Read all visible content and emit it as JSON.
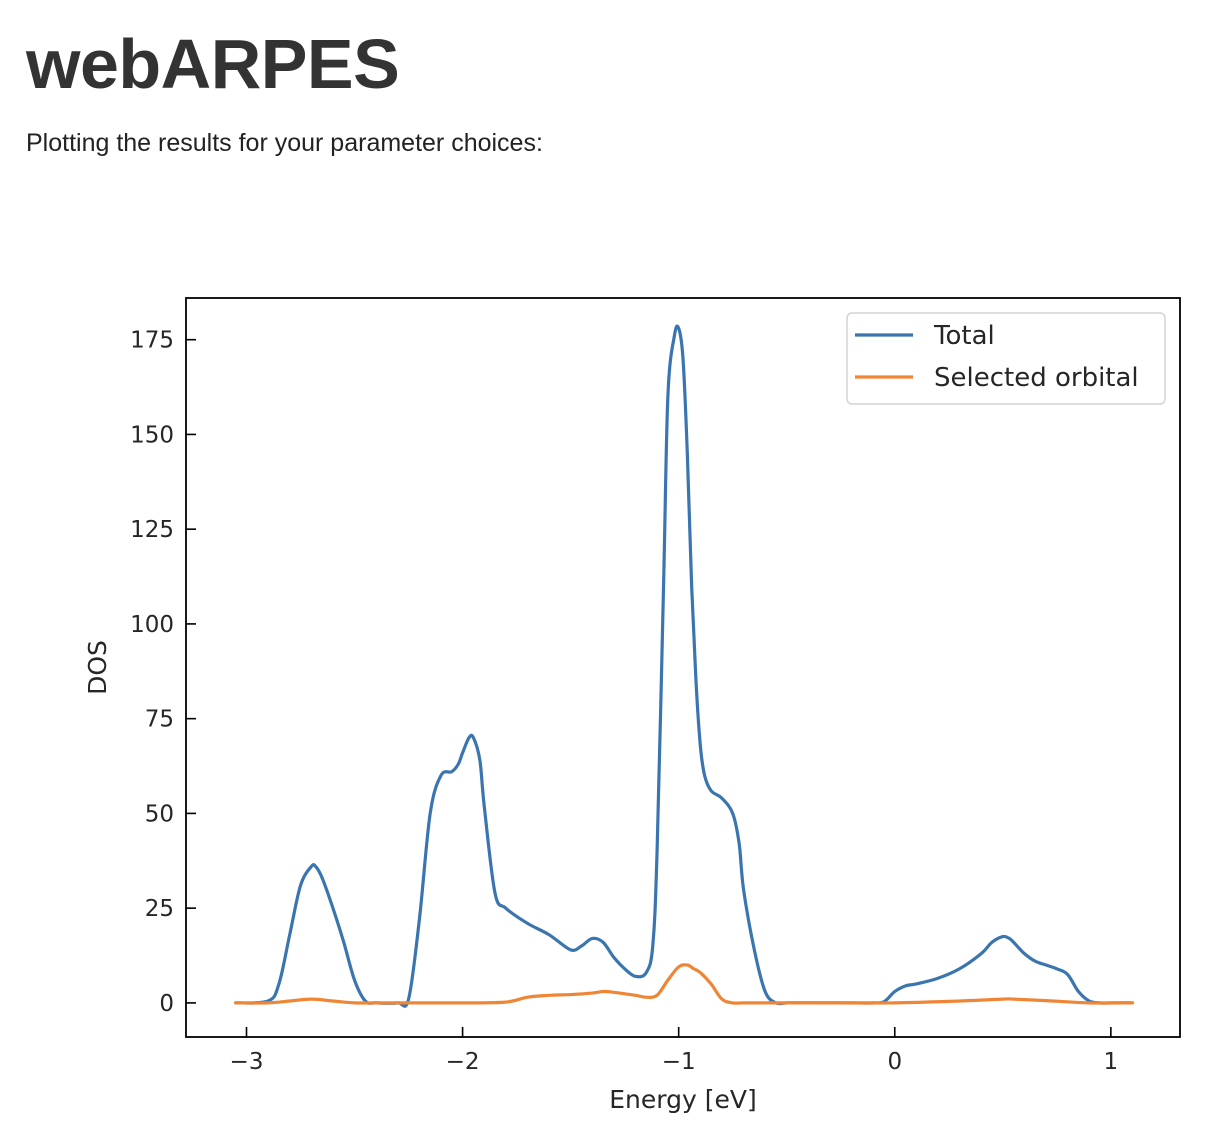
{
  "page": {
    "title": "webARPES",
    "intro": "Plotting the results for your parameter choices:"
  },
  "colors": {
    "total": "#3b75af",
    "selected_orbital": "#ef8636",
    "text": "#333333"
  },
  "chart_data": {
    "type": "line",
    "title": "",
    "xlabel": "Energy [eV]",
    "ylabel": "DOS",
    "xlim": [
      -3.28,
      1.32
    ],
    "ylim": [
      -9,
      186
    ],
    "xticks": [
      -3,
      -2,
      -1,
      0,
      1
    ],
    "xtick_labels": [
      "−3",
      "−2",
      "−1",
      "0",
      "1"
    ],
    "yticks": [
      0,
      25,
      50,
      75,
      100,
      125,
      150,
      175
    ],
    "ytick_labels": [
      "0",
      "25",
      "50",
      "75",
      "100",
      "125",
      "150",
      "175"
    ],
    "grid": false,
    "ticks_direction": "in",
    "legend_position": "top-right",
    "series": [
      {
        "name": "Total",
        "color": "#3b75af",
        "x": [
          -3.05,
          -2.9,
          -2.85,
          -2.8,
          -2.75,
          -2.7,
          -2.68,
          -2.65,
          -2.6,
          -2.55,
          -2.5,
          -2.45,
          -2.4,
          -2.3,
          -2.25,
          -2.2,
          -2.15,
          -2.1,
          -2.05,
          -2.02,
          -2.0,
          -1.97,
          -1.95,
          -1.92,
          -1.9,
          -1.85,
          -1.8,
          -1.7,
          -1.6,
          -1.5,
          -1.45,
          -1.4,
          -1.35,
          -1.3,
          -1.25,
          -1.2,
          -1.15,
          -1.12,
          -1.1,
          -1.07,
          -1.05,
          -1.02,
          -1.0,
          -0.98,
          -0.96,
          -0.94,
          -0.92,
          -0.9,
          -0.88,
          -0.85,
          -0.8,
          -0.75,
          -0.72,
          -0.7,
          -0.65,
          -0.6,
          -0.55,
          -0.5,
          -0.45,
          -0.4,
          -0.3,
          -0.2,
          -0.1,
          -0.05,
          0.0,
          0.05,
          0.1,
          0.2,
          0.3,
          0.4,
          0.45,
          0.5,
          0.53,
          0.55,
          0.6,
          0.65,
          0.7,
          0.75,
          0.8,
          0.85,
          0.9,
          0.95,
          1.0,
          1.1
        ],
        "y": [
          0,
          0.5,
          5,
          18,
          31,
          36,
          36,
          33,
          25,
          16,
          6,
          0.5,
          0,
          0,
          1,
          22,
          50,
          60,
          61,
          63,
          66,
          70,
          70,
          64,
          52,
          29,
          25,
          21,
          18,
          14,
          15,
          17,
          16,
          12,
          9,
          7,
          8,
          15,
          40,
          110,
          160,
          176,
          178,
          170,
          145,
          110,
          85,
          68,
          60,
          56,
          54,
          50,
          42,
          30,
          14,
          3,
          0,
          0,
          0,
          0,
          0,
          0,
          0,
          0.3,
          3,
          4.5,
          5,
          6.5,
          9,
          13,
          16,
          17.5,
          17,
          16,
          13,
          11,
          10,
          9,
          7.5,
          3,
          0.5,
          0,
          0,
          0
        ]
      },
      {
        "name": "Selected orbital",
        "color": "#ef8636",
        "x": [
          -3.05,
          -2.9,
          -2.8,
          -2.7,
          -2.6,
          -2.5,
          -2.4,
          -2.2,
          -2.0,
          -1.8,
          -1.7,
          -1.6,
          -1.5,
          -1.4,
          -1.35,
          -1.3,
          -1.2,
          -1.15,
          -1.1,
          -1.05,
          -1.0,
          -0.96,
          -0.93,
          -0.9,
          -0.85,
          -0.8,
          -0.75,
          -0.7,
          -0.6,
          -0.4,
          0.0,
          0.3,
          0.5,
          0.55,
          0.7,
          0.9,
          1.1
        ],
        "y": [
          0,
          0,
          0.5,
          1,
          0.5,
          0,
          0,
          0,
          0,
          0.2,
          1.5,
          2,
          2.2,
          2.6,
          3,
          2.8,
          2,
          1.5,
          2,
          6,
          9.5,
          10,
          9,
          8,
          5,
          1,
          0,
          0,
          0,
          0,
          0,
          0.5,
          1,
          1,
          0.6,
          0,
          0
        ]
      }
    ]
  }
}
